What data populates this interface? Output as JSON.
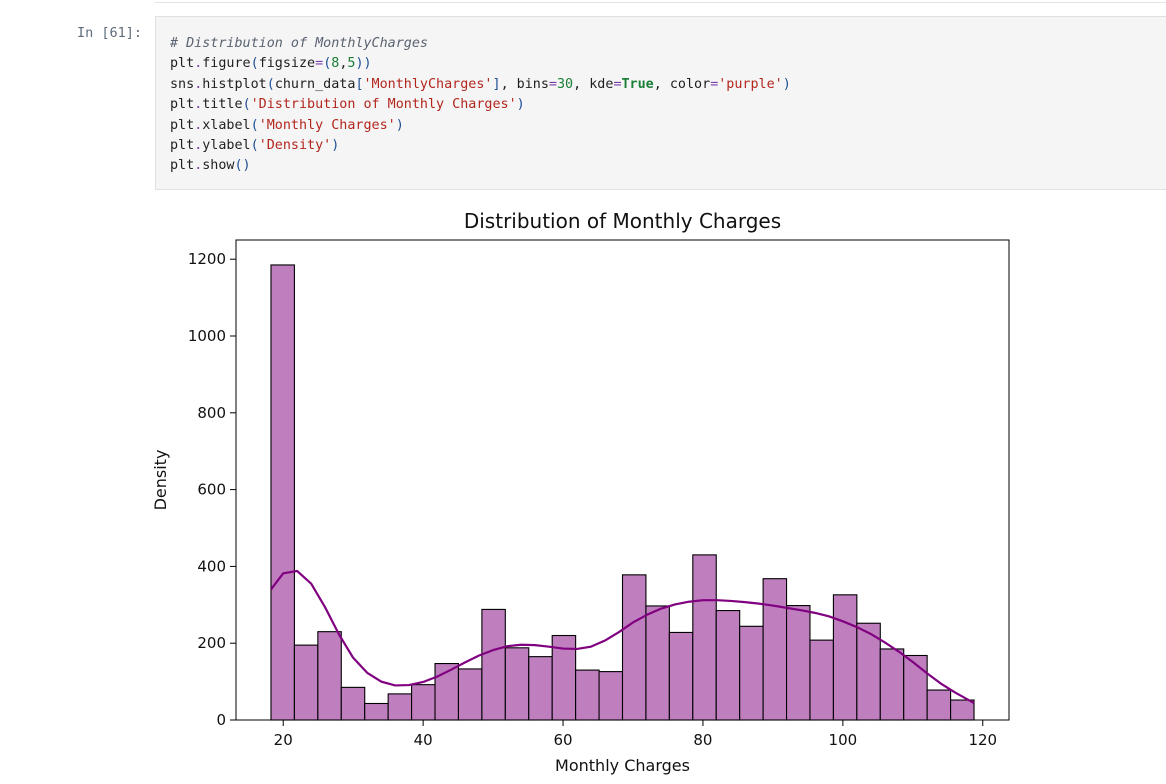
{
  "cell": {
    "prompt": "In [61]:",
    "code_lines": [
      [
        {
          "t": "comment",
          "v": "# Distribution of MonthlyCharges"
        }
      ],
      [
        {
          "t": "plain",
          "v": "plt"
        },
        {
          "t": "op",
          "v": "."
        },
        {
          "t": "plain",
          "v": "figure"
        },
        {
          "t": "punct",
          "v": "("
        },
        {
          "t": "plain",
          "v": "figsize"
        },
        {
          "t": "op",
          "v": "="
        },
        {
          "t": "punct",
          "v": "("
        },
        {
          "t": "num",
          "v": "8"
        },
        {
          "t": "plain",
          "v": ","
        },
        {
          "t": "num",
          "v": "5"
        },
        {
          "t": "punct",
          "v": "))"
        }
      ],
      [
        {
          "t": "plain",
          "v": "sns"
        },
        {
          "t": "op",
          "v": "."
        },
        {
          "t": "plain",
          "v": "histplot"
        },
        {
          "t": "punct",
          "v": "("
        },
        {
          "t": "plain",
          "v": "churn_data"
        },
        {
          "t": "punct",
          "v": "["
        },
        {
          "t": "str",
          "v": "'MonthlyCharges'"
        },
        {
          "t": "punct",
          "v": "]"
        },
        {
          "t": "plain",
          "v": ", bins"
        },
        {
          "t": "op",
          "v": "="
        },
        {
          "t": "num",
          "v": "30"
        },
        {
          "t": "plain",
          "v": ", kde"
        },
        {
          "t": "op",
          "v": "="
        },
        {
          "t": "kw",
          "v": "True"
        },
        {
          "t": "plain",
          "v": ", color"
        },
        {
          "t": "op",
          "v": "="
        },
        {
          "t": "str",
          "v": "'purple'"
        },
        {
          "t": "punct",
          "v": ")"
        }
      ],
      [
        {
          "t": "plain",
          "v": "plt"
        },
        {
          "t": "op",
          "v": "."
        },
        {
          "t": "plain",
          "v": "title"
        },
        {
          "t": "punct",
          "v": "("
        },
        {
          "t": "str",
          "v": "'Distribution of Monthly Charges'"
        },
        {
          "t": "punct",
          "v": ")"
        }
      ],
      [
        {
          "t": "plain",
          "v": "plt"
        },
        {
          "t": "op",
          "v": "."
        },
        {
          "t": "plain",
          "v": "xlabel"
        },
        {
          "t": "punct",
          "v": "("
        },
        {
          "t": "str",
          "v": "'Monthly Charges'"
        },
        {
          "t": "punct",
          "v": ")"
        }
      ],
      [
        {
          "t": "plain",
          "v": "plt"
        },
        {
          "t": "op",
          "v": "."
        },
        {
          "t": "plain",
          "v": "ylabel"
        },
        {
          "t": "punct",
          "v": "("
        },
        {
          "t": "str",
          "v": "'Density'"
        },
        {
          "t": "punct",
          "v": ")"
        }
      ],
      [
        {
          "t": "plain",
          "v": "plt"
        },
        {
          "t": "op",
          "v": "."
        },
        {
          "t": "plain",
          "v": "show"
        },
        {
          "t": "punct",
          "v": "()"
        }
      ]
    ]
  },
  "colors": {
    "bar_fill": "#bf7fbf",
    "bar_edge": "#000000",
    "kde_line": "#800080",
    "axis": "#000000",
    "cell_background": "#f5f5f5"
  },
  "chart_data": {
    "type": "bar",
    "title": "Distribution of Monthly Charges",
    "xlabel": "Monthly Charges",
    "ylabel": "Density",
    "xlim": [
      13.25,
      123.75
    ],
    "ylim": [
      0,
      1250
    ],
    "xticks": [
      20,
      40,
      60,
      80,
      100,
      120
    ],
    "yticks": [
      0,
      200,
      400,
      600,
      800,
      1000,
      1200
    ],
    "grid": false,
    "bin_edges": [
      18.25,
      21.6,
      24.95,
      28.3,
      31.65,
      35.0,
      38.35,
      41.7,
      45.05,
      48.4,
      51.75,
      55.1,
      58.45,
      61.8,
      65.15,
      68.5,
      71.85,
      75.2,
      78.55,
      81.9,
      85.25,
      88.6,
      91.95,
      95.3,
      98.65,
      102.0,
      105.35,
      108.7,
      112.05,
      115.4,
      118.75
    ],
    "bar_heights": [
      1185,
      195,
      230,
      85,
      43,
      68,
      92,
      147,
      133,
      288,
      188,
      165,
      220,
      130,
      126,
      378,
      297,
      228,
      430,
      285,
      244,
      368,
      298,
      208,
      326,
      252,
      185,
      168,
      78,
      52
    ],
    "kde": {
      "label": "kde",
      "x": [
        18.25,
        20,
        22,
        24,
        26,
        28,
        30,
        32,
        34,
        36,
        38,
        40,
        42,
        44,
        46,
        48,
        50,
        52,
        54,
        56,
        58,
        60,
        62,
        64,
        66,
        68,
        70,
        72,
        74,
        76,
        78,
        80,
        82,
        84,
        86,
        88,
        90,
        92,
        94,
        96,
        98,
        100,
        102,
        104,
        106,
        108,
        110,
        112,
        114,
        116,
        118.75
      ],
      "y": [
        340,
        382,
        388,
        355,
        293,
        222,
        162,
        123,
        100,
        90,
        91,
        99,
        113,
        131,
        150,
        168,
        182,
        192,
        196,
        195,
        191,
        186,
        185,
        191,
        207,
        229,
        254,
        274,
        290,
        301,
        308,
        312,
        312,
        310,
        307,
        303,
        298,
        292,
        286,
        279,
        270,
        257,
        242,
        224,
        202,
        178,
        151,
        122,
        95,
        72,
        44
      ]
    }
  }
}
